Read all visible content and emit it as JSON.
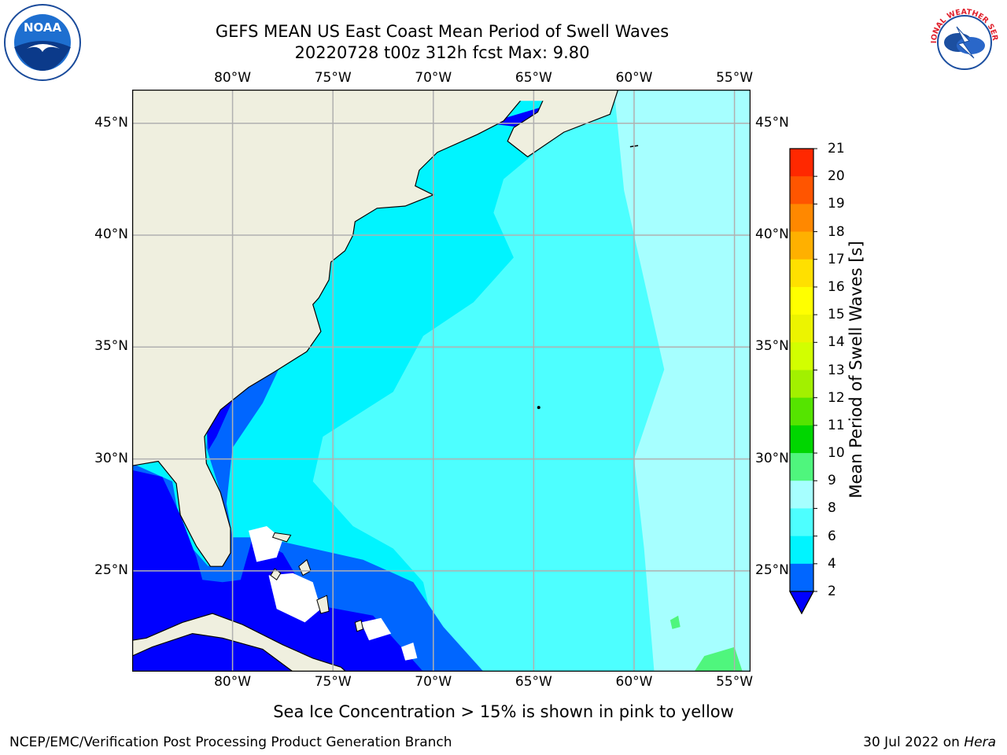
{
  "header": {
    "title_line1": "GEFS MEAN US East Coast Mean Period of Swell Waves",
    "title_line2": "20220728 t00z 312h fcst   Max: 9.80"
  },
  "logos": {
    "left": {
      "name": "noaa-logo",
      "text": "NOAA"
    },
    "right": {
      "name": "nws-logo",
      "text": "NATIONAL WEATHER SERVICE"
    }
  },
  "map": {
    "lon_labels": [
      "80°W",
      "75°W",
      "70°W",
      "65°W",
      "60°W",
      "55°W"
    ],
    "lat_labels": [
      "45°N",
      "40°N",
      "35°N",
      "30°N",
      "25°N"
    ],
    "lon_range": [
      -85,
      -54.2
    ],
    "lat_range": [
      20.5,
      46.5
    ],
    "land_color": "#efefdf",
    "grid_color": "#b0b0b0"
  },
  "colorbar": {
    "label": "Mean Period of Swell Waves [s]",
    "ticks": [
      "2",
      "4",
      "6",
      "8",
      "9",
      "10",
      "11",
      "12",
      "13",
      "14",
      "15",
      "16",
      "17",
      "18",
      "19",
      "20",
      "21"
    ],
    "colors": [
      "#0066ff",
      "#00f4ff",
      "#4dffff",
      "#a6ffff",
      "#4ff67d",
      "#00d600",
      "#55e400",
      "#a2f000",
      "#d2ff00",
      "#ecf400",
      "#ffff00",
      "#ffe000",
      "#ffb000",
      "#ff8800",
      "#ff5500",
      "#ff2800"
    ],
    "under_color": "#0000ff",
    "top_color": "#ff0000"
  },
  "footer": {
    "sea_ice_note": "Sea Ice Concentration > 15% is shown in pink to yellow",
    "credit": "NCEP/EMC/Verification Post Processing Product Generation Branch",
    "date": "30 Jul 2022 on ",
    "machine": "Hera"
  }
}
